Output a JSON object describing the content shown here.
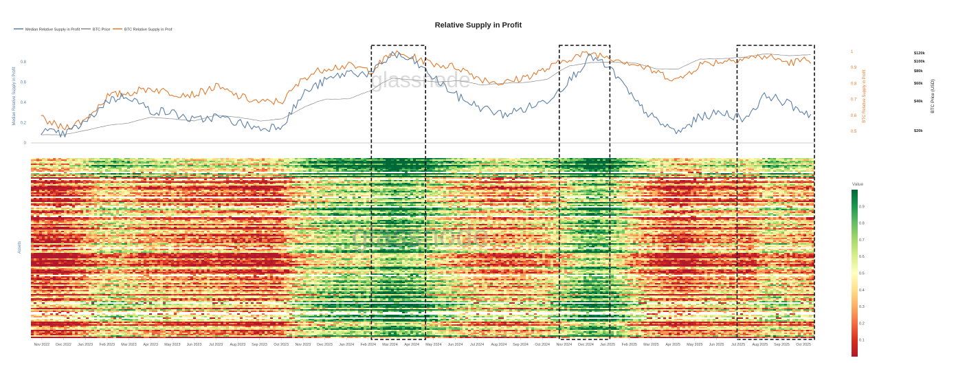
{
  "title": "Relative Supply in Profit",
  "legend": [
    {
      "label": "Median Relative Supply in Profit",
      "color": "#5b7fa6"
    },
    {
      "label": "BTC Price",
      "color": "#8a8a8a"
    },
    {
      "label": "BTC Relative Supply in Prof",
      "color": "#e07b2e"
    }
  ],
  "watermark": "glassnode",
  "left_axis": {
    "label": "Median Relative Supply in Profit",
    "ticks": [
      "0",
      "0.2",
      "0.4",
      "0.6",
      "0.8"
    ],
    "color": "#5b7fa6"
  },
  "right_axis": {
    "label": "BTC Relative Supply in Profit",
    "ticks": [
      "0.5",
      "0.6",
      "0.7",
      "0.8",
      "0.9",
      "1"
    ],
    "color": "#e07b2e"
  },
  "price_axis": {
    "label": "BTC Price (USD)",
    "ticks": [
      "$20k",
      "$40k",
      "$60k",
      "$80k",
      "$100k",
      "$120k"
    ]
  },
  "heatmap_axis": {
    "label": "Assets"
  },
  "colorbar": {
    "title": "Value",
    "ticks": [
      "0.1",
      "0.2",
      "0.3",
      "0.4",
      "0.5",
      "0.6",
      "0.7",
      "0.8",
      "0.9"
    ]
  },
  "x_ticks": [
    "Nov 2022",
    "Dec 2022",
    "Jan 2023",
    "Feb 2023",
    "Mar 2023",
    "Apr 2023",
    "May 2023",
    "Jun 2023",
    "Jul 2023",
    "Aug 2023",
    "Sep 2023",
    "Oct 2023",
    "Nov 2023",
    "Dec 2023",
    "Jan 2024",
    "Feb 2024",
    "Mar 2024",
    "Apr 2024",
    "May 2024",
    "Jun 2024",
    "Jul 2024",
    "Aug 2024",
    "Sep 2024",
    "Oct 2024",
    "Nov 2024",
    "Dec 2024",
    "Jan 2025",
    "Feb 2025",
    "Mar 2025",
    "Apr 2025",
    "May 2025",
    "Jun 2025",
    "Jul 2025",
    "Aug 2025",
    "Sep 2025",
    "Oct 2025"
  ],
  "chart_data": {
    "type": "line",
    "x": [
      "2022-11",
      "2022-12",
      "2023-01",
      "2023-02",
      "2023-03",
      "2023-04",
      "2023-05",
      "2023-06",
      "2023-07",
      "2023-08",
      "2023-09",
      "2023-10",
      "2023-11",
      "2023-12",
      "2024-01",
      "2024-02",
      "2024-03",
      "2024-04",
      "2024-05",
      "2024-06",
      "2024-07",
      "2024-08",
      "2024-09",
      "2024-10",
      "2024-11",
      "2024-12",
      "2025-01",
      "2025-02",
      "2025-03",
      "2025-04",
      "2025-05",
      "2025-06",
      "2025-07",
      "2025-08",
      "2025-09",
      "2025-10"
    ],
    "series": [
      {
        "name": "Median Relative Supply in Profit",
        "axis": "left",
        "values": [
          0.12,
          0.08,
          0.2,
          0.42,
          0.47,
          0.32,
          0.3,
          0.22,
          0.26,
          0.2,
          0.14,
          0.18,
          0.5,
          0.62,
          0.7,
          0.68,
          0.88,
          0.8,
          0.62,
          0.45,
          0.35,
          0.28,
          0.34,
          0.42,
          0.62,
          0.86,
          0.7,
          0.4,
          0.22,
          0.1,
          0.26,
          0.3,
          0.24,
          0.48,
          0.38,
          0.28
        ]
      },
      {
        "name": "BTC Price",
        "axis": "price",
        "values": [
          17000,
          16900,
          20000,
          23500,
          25000,
          29000,
          28000,
          26500,
          30500,
          29000,
          26500,
          28000,
          36000,
          42000,
          42500,
          52000,
          68000,
          65000,
          62000,
          64000,
          58000,
          60000,
          61000,
          66000,
          90000,
          97000,
          98000,
          96000,
          84000,
          84000,
          105000,
          106000,
          110000,
          118000,
          113000,
          116000
        ]
      },
      {
        "name": "BTC Relative Supply in Prof",
        "axis": "right",
        "values": [
          0.58,
          0.52,
          0.57,
          0.72,
          0.74,
          0.77,
          0.74,
          0.73,
          0.78,
          0.72,
          0.68,
          0.69,
          0.84,
          0.9,
          0.91,
          0.88,
          0.99,
          0.96,
          0.92,
          0.9,
          0.83,
          0.8,
          0.84,
          0.89,
          0.96,
          0.99,
          0.96,
          0.92,
          0.87,
          0.82,
          0.92,
          0.94,
          0.96,
          0.97,
          0.93,
          0.95
        ]
      }
    ],
    "left_ylim": [
      0,
      0.95
    ],
    "right_ylim": [
      0.45,
      1.0
    ],
    "price_ylim": [
      0,
      125000
    ],
    "highlight_periods": [
      [
        "2024-02-15",
        "2024-04-30"
      ],
      [
        "2024-11-01",
        "2025-01-10"
      ],
      [
        "2025-07-05",
        "2025-10-20"
      ]
    ],
    "heatmap": {
      "type": "heatmap",
      "x_range": [
        "2022-11",
        "2025-10"
      ],
      "value_range": [
        0,
        1
      ],
      "colorscale": [
        "#b2182b",
        "#d7301f",
        "#f46d43",
        "#fdae61",
        "#fee08b",
        "#ffffbf",
        "#d9ef8b",
        "#a6d96a",
        "#66bd63",
        "#1a9850",
        "#006837"
      ]
    },
    "legend_position": "top-left",
    "grid": false
  }
}
